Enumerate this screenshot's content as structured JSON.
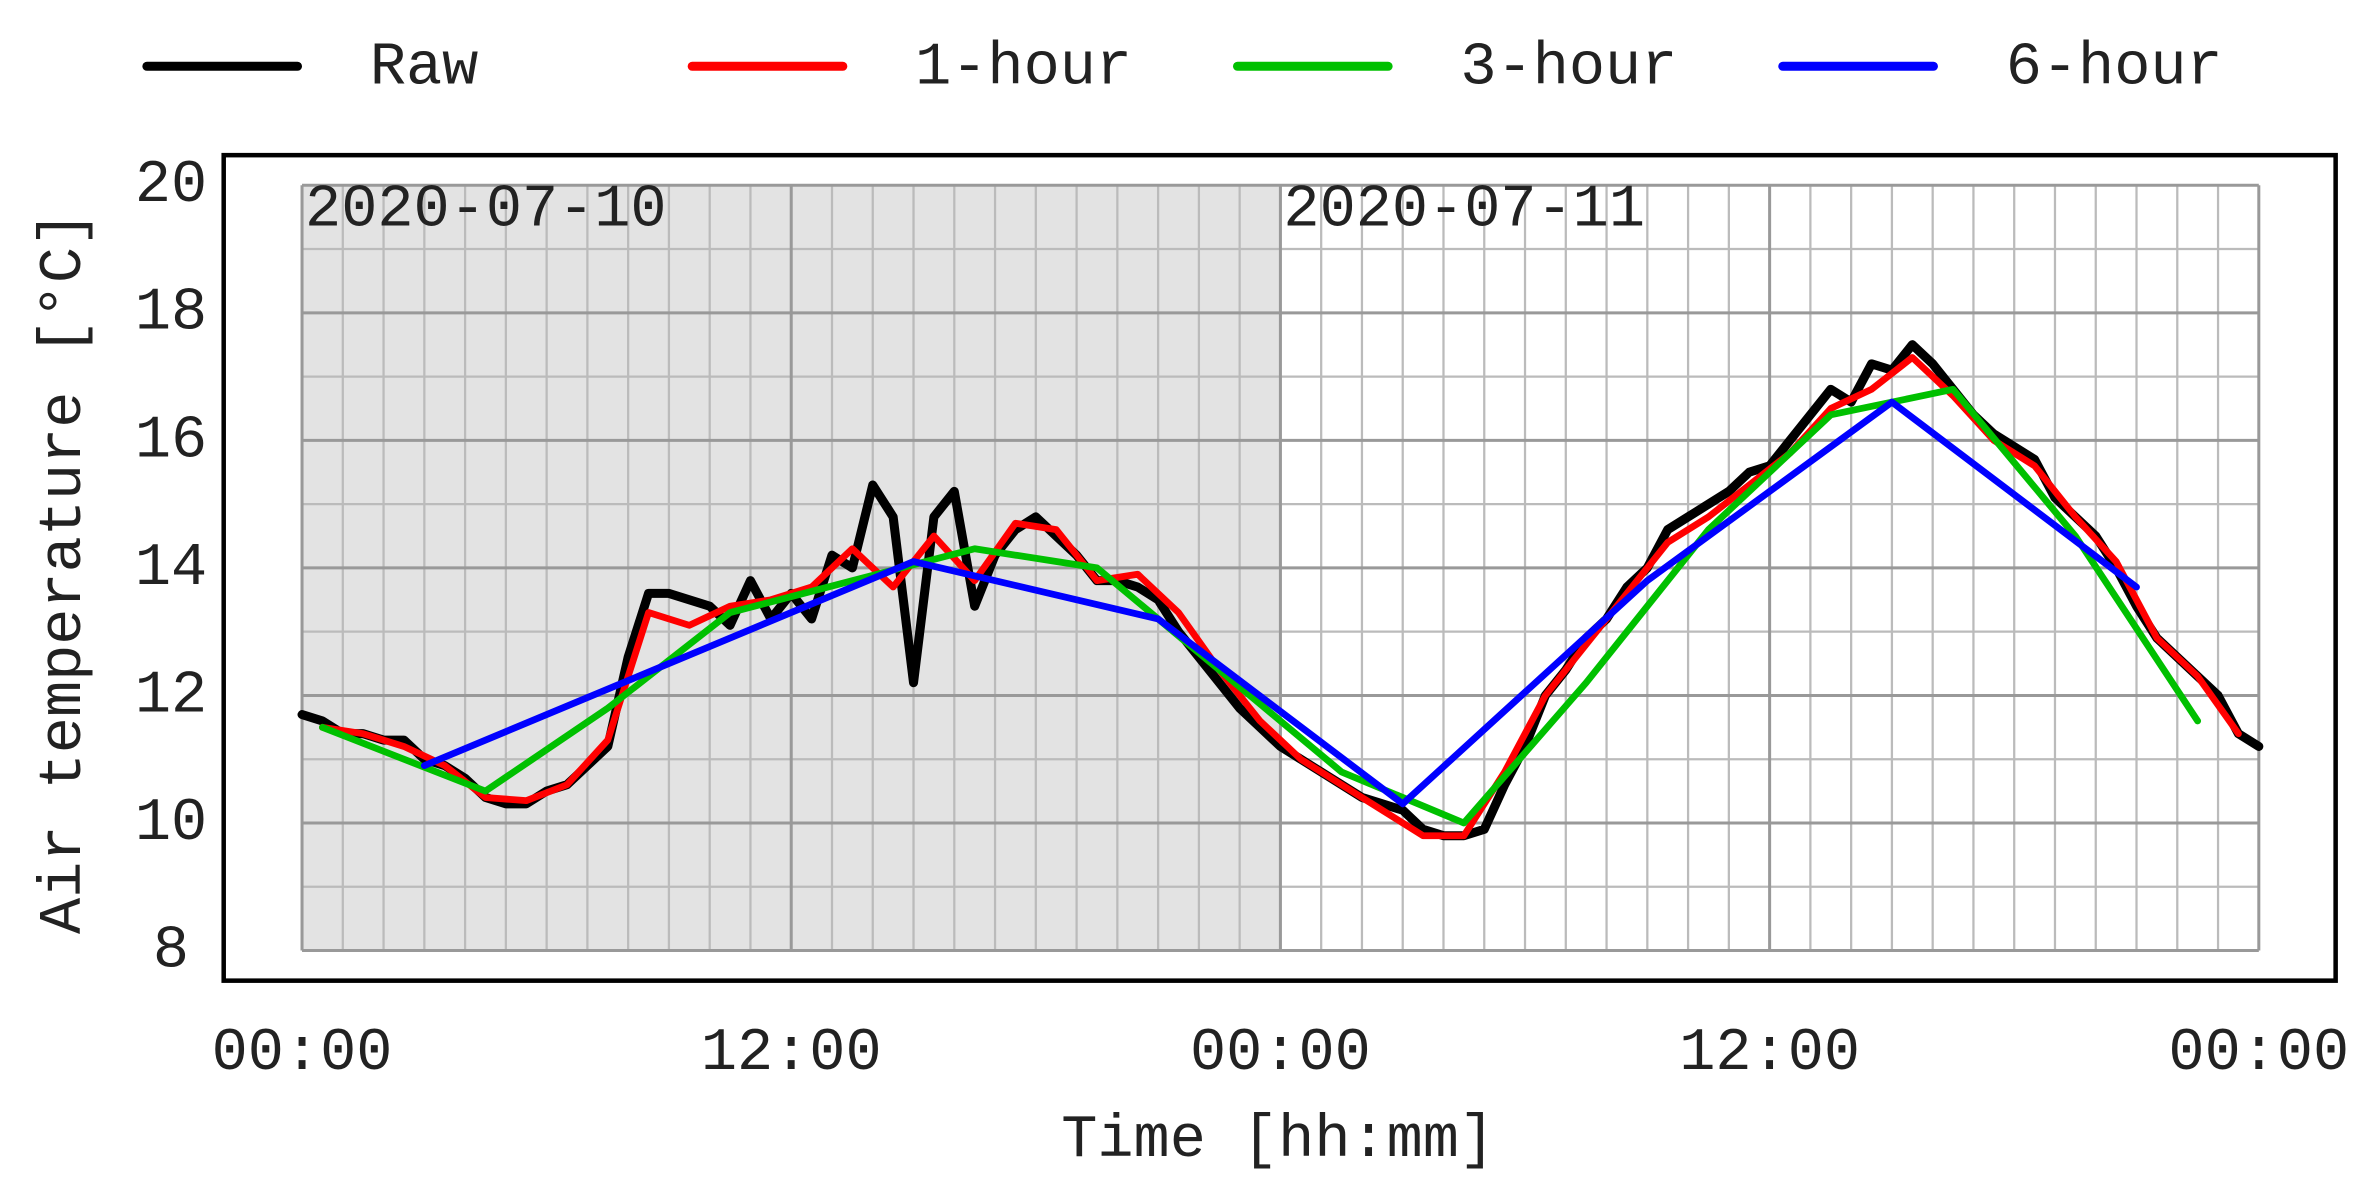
{
  "chart_data": {
    "type": "line",
    "xlabel": "Time [hh:mm]",
    "ylabel": "Air temperature [°C]",
    "xlim": [
      0,
      48
    ],
    "ylim": [
      8,
      20
    ],
    "xticks": [
      {
        "value": 0,
        "label": "00:00"
      },
      {
        "value": 12,
        "label": "12:00"
      },
      {
        "value": 24,
        "label": "00:00"
      },
      {
        "value": 36,
        "label": "12:00"
      },
      {
        "value": 48,
        "label": "00:00"
      }
    ],
    "yticks": [
      8,
      10,
      12,
      14,
      16,
      18,
      20
    ],
    "xminorticks": [
      1,
      2,
      3,
      4,
      5,
      6,
      7,
      8,
      9,
      10,
      11,
      13,
      14,
      15,
      16,
      17,
      18,
      19,
      20,
      21,
      22,
      23,
      25,
      26,
      27,
      28,
      29,
      30,
      31,
      32,
      33,
      34,
      35,
      37,
      38,
      39,
      40,
      41,
      42,
      43,
      44,
      45,
      46,
      47
    ],
    "yminorticks": [
      9,
      11,
      13,
      15,
      17,
      19
    ],
    "grid": true,
    "legend": "top",
    "shaded_x": [
      0,
      24
    ],
    "shade_color": "#e3e3e3",
    "annotations": [
      {
        "x": 0,
        "text": "2020-07-10"
      },
      {
        "x": 24,
        "text": "2020-07-11"
      }
    ],
    "series": [
      {
        "name": "Raw",
        "color": "#000000",
        "x": [
          0,
          0.5,
          1,
          1.5,
          2,
          2.5,
          3,
          3.5,
          4,
          4.5,
          5,
          5.5,
          6,
          6.5,
          7,
          7.5,
          8,
          8.5,
          9,
          9.5,
          10,
          10.5,
          11,
          11.5,
          12,
          12.5,
          13,
          13.5,
          14,
          14.5,
          15,
          15.5,
          16,
          16.5,
          17,
          17.5,
          18,
          18.5,
          19,
          19.5,
          20,
          20.5,
          21,
          21.5,
          22,
          22.5,
          23,
          23.5,
          24,
          24.5,
          25,
          25.5,
          26,
          26.5,
          27,
          27.5,
          28,
          28.5,
          29,
          29.5,
          30,
          30.5,
          31,
          31.5,
          32,
          32.5,
          33,
          33.5,
          34,
          34.5,
          35,
          35.5,
          36,
          36.5,
          37,
          37.5,
          38,
          38.5,
          39,
          39.5,
          40,
          40.5,
          41,
          41.5,
          42,
          42.5,
          43,
          43.5,
          44,
          44.5,
          45,
          45.5,
          46,
          46.5,
          47,
          47.5,
          48
        ],
        "values": [
          11.7,
          11.6,
          11.4,
          11.4,
          11.3,
          11.3,
          11.0,
          10.9,
          10.7,
          10.4,
          10.3,
          10.3,
          10.5,
          10.6,
          10.9,
          11.2,
          12.6,
          13.6,
          13.6,
          13.5,
          13.4,
          13.1,
          13.8,
          13.2,
          13.6,
          13.2,
          14.2,
          14.0,
          15.3,
          14.8,
          12.2,
          14.8,
          15.2,
          13.4,
          14.2,
          14.6,
          14.8,
          14.5,
          14.2,
          13.8,
          13.8,
          13.7,
          13.5,
          13.0,
          12.6,
          12.2,
          11.8,
          11.5,
          11.2,
          11.0,
          10.8,
          10.6,
          10.4,
          10.3,
          10.2,
          9.9,
          9.8,
          9.8,
          9.9,
          10.6,
          11.2,
          12.0,
          12.4,
          12.9,
          13.2,
          13.7,
          14.0,
          14.6,
          14.8,
          15.0,
          15.2,
          15.5,
          15.6,
          16.0,
          16.4,
          16.8,
          16.6,
          17.2,
          17.1,
          17.5,
          17.2,
          16.8,
          16.4,
          16.1,
          15.9,
          15.7,
          15.1,
          14.8,
          14.5,
          14.0,
          13.4,
          12.9,
          12.6,
          12.3,
          12.0,
          11.4,
          11.2
        ]
      },
      {
        "name": "1-hour",
        "color": "#ff0000",
        "x": [
          0.5,
          1.5,
          2.5,
          3.5,
          4.5,
          5.5,
          6.5,
          7.5,
          8.5,
          9.5,
          10.5,
          11.5,
          12.5,
          13.5,
          14.5,
          15.5,
          16.5,
          17.5,
          18.5,
          19.5,
          20.5,
          21.5,
          22.5,
          23.5,
          24.5,
          25.5,
          26.5,
          27.5,
          28.5,
          29.5,
          30.5,
          31.5,
          32.5,
          33.5,
          34.5,
          35.5,
          36.5,
          37.5,
          38.5,
          39.5,
          40.5,
          41.5,
          42.5,
          43.5,
          44.5,
          45.5,
          46.5,
          47.5
        ],
        "values": [
          11.5,
          11.4,
          11.2,
          10.9,
          10.4,
          10.35,
          10.6,
          11.3,
          13.3,
          13.1,
          13.4,
          13.5,
          13.7,
          14.3,
          13.7,
          14.5,
          13.8,
          14.7,
          14.6,
          13.8,
          13.9,
          13.3,
          12.4,
          11.6,
          11.0,
          10.6,
          10.2,
          9.8,
          9.8,
          10.8,
          12.0,
          12.8,
          13.6,
          14.4,
          14.8,
          15.3,
          15.8,
          16.5,
          16.8,
          17.3,
          16.7,
          16.0,
          15.6,
          14.8,
          14.1,
          12.9,
          12.3,
          11.4
        ]
      },
      {
        "name": "3-hour",
        "color": "#00c000",
        "x": [
          0.5,
          4.5,
          7.5,
          10.5,
          13.5,
          16.5,
          19.5,
          22.5,
          25.5,
          28.5,
          31.5,
          34.5,
          37.5,
          40.5,
          43.5,
          46.5
        ],
        "values": [
          11.5,
          10.5,
          11.8,
          13.3,
          13.8,
          14.3,
          14.0,
          12.4,
          10.8,
          10.0,
          12.2,
          14.6,
          16.4,
          16.8,
          14.5,
          11.6
        ]
      },
      {
        "name": "6-hour",
        "color": "#0000ff",
        "x": [
          3,
          15,
          21,
          27,
          33,
          39,
          45
        ],
        "values": [
          10.9,
          14.1,
          13.2,
          10.3,
          13.8,
          16.6,
          13.7
        ]
      }
    ]
  }
}
